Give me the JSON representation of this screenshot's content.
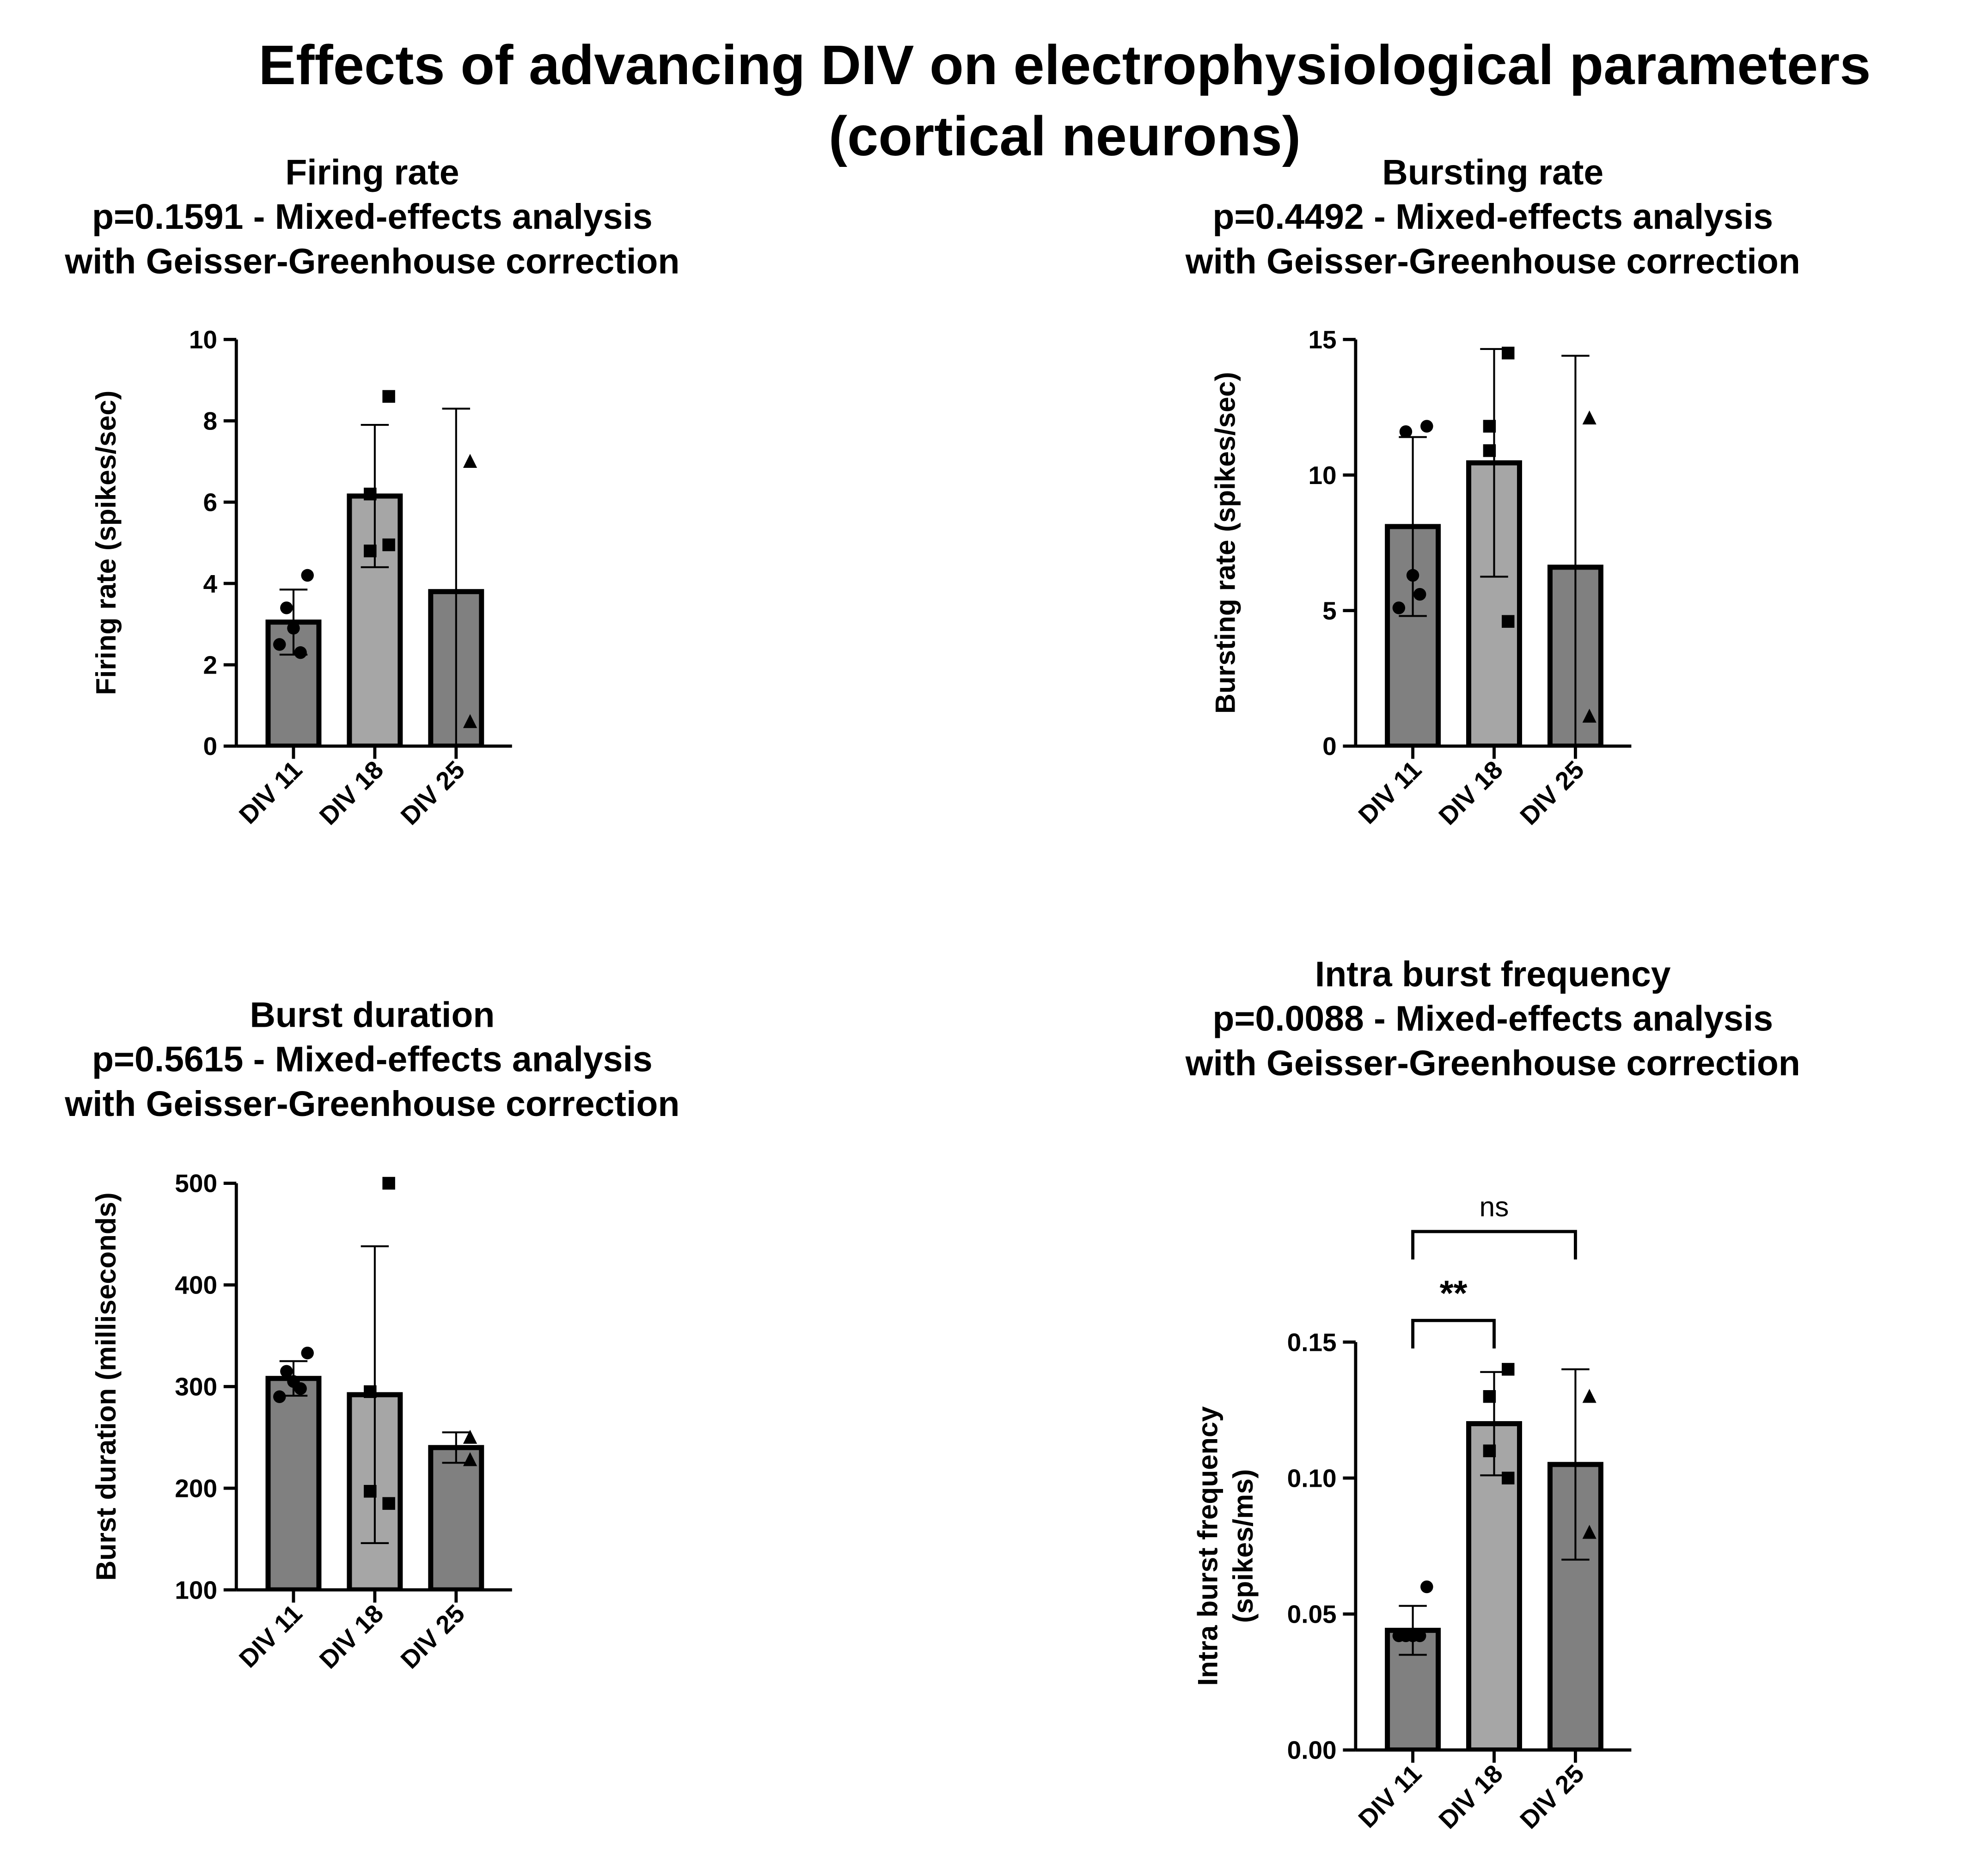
{
  "title": [
    "Effects of advancing DIV on electrophysiological parameters",
    "(cortical neurons)"
  ],
  "chart_data": [
    {
      "type": "bar",
      "title": "Firing rate",
      "subtitle": [
        "p=0.1591 - Mixed-effects analysis",
        "with Geisser-Greenhouse correction"
      ],
      "ylabel": [
        "Firing rate (spikes/sec)"
      ],
      "categories": [
        "DIV 11",
        "DIV 18",
        "DIV 25"
      ],
      "values": [
        3.05,
        6.15,
        3.8
      ],
      "errors": [
        0.8,
        1.75,
        4.5
      ],
      "points": [
        [
          4.2,
          3.4,
          2.9,
          2.3,
          2.5
        ],
        [
          8.6,
          6.2,
          4.8,
          4.95
        ],
        [
          7.0,
          0.6
        ]
      ],
      "colors": [
        "#808080",
        "#a6a6a6",
        "#808080"
      ],
      "markers": [
        "circle",
        "square",
        "triangle"
      ],
      "ylim": [
        0,
        10
      ],
      "yticks": [
        0,
        2,
        4,
        6,
        8,
        10
      ]
    },
    {
      "type": "bar",
      "title": "Bursting rate",
      "subtitle": [
        "p=0.4492 - Mixed-effects analysis",
        "with Geisser-Greenhouse correction"
      ],
      "ylabel": [
        "Bursting rate (spikes/sec)"
      ],
      "categories": [
        "DIV 11",
        "DIV 18",
        "DIV 25"
      ],
      "values": [
        8.1,
        10.45,
        6.6
      ],
      "errors": [
        3.3,
        4.2,
        7.8
      ],
      "points": [
        [
          11.8,
          11.6,
          6.3,
          5.6,
          5.1
        ],
        [
          14.5,
          11.8,
          10.9,
          4.6
        ],
        [
          12.1,
          1.1
        ]
      ],
      "colors": [
        "#808080",
        "#a6a6a6",
        "#808080"
      ],
      "markers": [
        "circle",
        "square",
        "triangle"
      ],
      "ylim": [
        0,
        15
      ],
      "yticks": [
        0,
        5,
        10,
        15
      ]
    },
    {
      "type": "bar",
      "title": "Burst duration",
      "subtitle": [
        "p=0.5615 - Mixed-effects analysis",
        "with Geisser-Greenhouse correction"
      ],
      "ylabel": [
        "Burst duration (milliseconds)"
      ],
      "categories": [
        "DIV 11",
        "DIV 18",
        "DIV 25"
      ],
      "values": [
        308,
        292,
        240
      ],
      "errors": [
        17,
        146,
        15
      ],
      "points": [
        [
          333,
          315,
          305,
          298,
          290
        ],
        [
          500,
          295,
          197,
          185
        ],
        [
          250,
          228
        ]
      ],
      "colors": [
        "#808080",
        "#a6a6a6",
        "#808080"
      ],
      "markers": [
        "circle",
        "square",
        "triangle"
      ],
      "ylim": [
        100,
        500
      ],
      "yticks": [
        100,
        200,
        300,
        400,
        500
      ]
    },
    {
      "type": "bar",
      "title": "Intra burst frequency",
      "subtitle": [
        "p=0.0088 - Mixed-effects analysis",
        "with Geisser-Greenhouse correction"
      ],
      "ylabel": [
        "Intra burst frequency",
        "(spikes/ms)"
      ],
      "categories": [
        "DIV 11",
        "DIV 18",
        "DIV 25"
      ],
      "values": [
        0.044,
        0.12,
        0.105
      ],
      "errors": [
        0.009,
        0.019,
        0.035
      ],
      "points": [
        [
          0.06,
          0.042,
          0.042,
          0.042,
          0.042
        ],
        [
          0.14,
          0.13,
          0.11,
          0.1
        ],
        [
          0.13,
          0.08
        ]
      ],
      "colors": [
        "#808080",
        "#a6a6a6",
        "#808080"
      ],
      "markers": [
        "circle",
        "square",
        "triangle"
      ],
      "ylim": [
        0,
        0.15
      ],
      "yticks": [
        {
          "value": 0,
          "label": "0.00"
        },
        0.05,
        {
          "value": 0.1,
          "label": "0.10"
        },
        0.15
      ],
      "annotations": [
        {
          "text": "**",
          "between": [
            0,
            1
          ]
        },
        {
          "text": "ns",
          "between": [
            0,
            2
          ]
        }
      ]
    }
  ]
}
